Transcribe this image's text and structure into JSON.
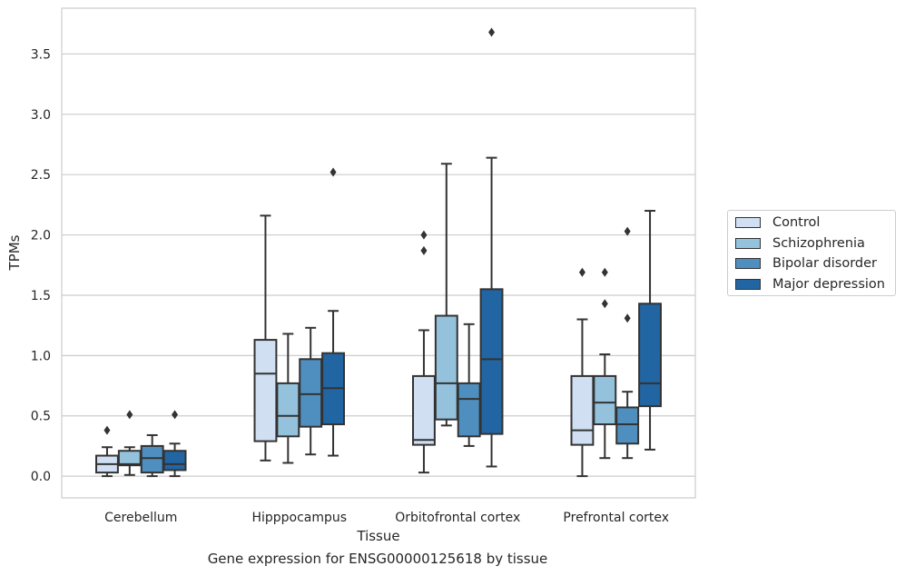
{
  "caption": "Gene expression for ENSG00000125618 by tissue",
  "chart_data": {
    "type": "box",
    "title": "",
    "xlabel": "Tissue",
    "ylabel": "TPMs",
    "ylim": [
      -0.18,
      3.88
    ],
    "yticks": [
      "0.0",
      "0.5",
      "1.0",
      "1.5",
      "2.0",
      "2.5",
      "3.0",
      "3.5"
    ],
    "ytick_values": [
      0,
      0.5,
      1.0,
      1.5,
      2.0,
      2.5,
      3.0,
      3.5
    ],
    "grid": true,
    "legend_position": "right",
    "categories": [
      "Cerebellum",
      "Hipppocampus",
      "Orbitofrontal cortex",
      "Prefrontal cortex"
    ],
    "series": [
      {
        "name": "Control",
        "color": "#d0e0f2",
        "boxes": [
          {
            "whislo": 0.0,
            "q1": 0.03,
            "med": 0.1,
            "q3": 0.17,
            "whishi": 0.24,
            "fliers": [
              0.38
            ]
          },
          {
            "whislo": 0.13,
            "q1": 0.29,
            "med": 0.85,
            "q3": 1.13,
            "whishi": 2.16,
            "fliers": []
          },
          {
            "whislo": 0.03,
            "q1": 0.26,
            "med": 0.3,
            "q3": 0.83,
            "whishi": 1.21,
            "fliers": [
              1.87,
              2.0
            ]
          },
          {
            "whislo": 0.0,
            "q1": 0.26,
            "med": 0.38,
            "q3": 0.83,
            "whishi": 1.3,
            "fliers": [
              1.69
            ]
          }
        ]
      },
      {
        "name": "Schizophrenia",
        "color": "#94c2dc",
        "boxes": [
          {
            "whislo": 0.01,
            "q1": 0.09,
            "med": 0.1,
            "q3": 0.21,
            "whishi": 0.24,
            "fliers": [
              0.51
            ]
          },
          {
            "whislo": 0.11,
            "q1": 0.33,
            "med": 0.5,
            "q3": 0.77,
            "whishi": 1.18,
            "fliers": []
          },
          {
            "whislo": 0.42,
            "q1": 0.47,
            "med": 0.77,
            "q3": 1.33,
            "whishi": 2.59,
            "fliers": []
          },
          {
            "whislo": 0.15,
            "q1": 0.43,
            "med": 0.61,
            "q3": 0.83,
            "whishi": 1.01,
            "fliers": [
              1.43,
              1.69
            ]
          }
        ]
      },
      {
        "name": "Bipolar disorder",
        "color": "#4f8fc0",
        "boxes": [
          {
            "whislo": 0.0,
            "q1": 0.03,
            "med": 0.15,
            "q3": 0.25,
            "whishi": 0.34,
            "fliers": []
          },
          {
            "whislo": 0.18,
            "q1": 0.41,
            "med": 0.68,
            "q3": 0.97,
            "whishi": 1.23,
            "fliers": []
          },
          {
            "whislo": 0.25,
            "q1": 0.33,
            "med": 0.64,
            "q3": 0.77,
            "whishi": 1.26,
            "fliers": []
          },
          {
            "whislo": 0.15,
            "q1": 0.27,
            "med": 0.43,
            "q3": 0.57,
            "whishi": 0.7,
            "fliers": [
              1.31,
              2.03
            ]
          }
        ]
      },
      {
        "name": "Major depression",
        "color": "#2265a3",
        "boxes": [
          {
            "whislo": 0.0,
            "q1": 0.05,
            "med": 0.1,
            "q3": 0.21,
            "whishi": 0.27,
            "fliers": [
              0.51
            ]
          },
          {
            "whislo": 0.17,
            "q1": 0.43,
            "med": 0.73,
            "q3": 1.02,
            "whishi": 1.37,
            "fliers": [
              2.52
            ]
          },
          {
            "whislo": 0.08,
            "q1": 0.35,
            "med": 0.97,
            "q3": 1.55,
            "whishi": 2.64,
            "fliers": [
              3.68
            ]
          },
          {
            "whislo": 0.22,
            "q1": 0.58,
            "med": 0.77,
            "q3": 1.43,
            "whishi": 2.2,
            "fliers": []
          }
        ]
      }
    ]
  }
}
